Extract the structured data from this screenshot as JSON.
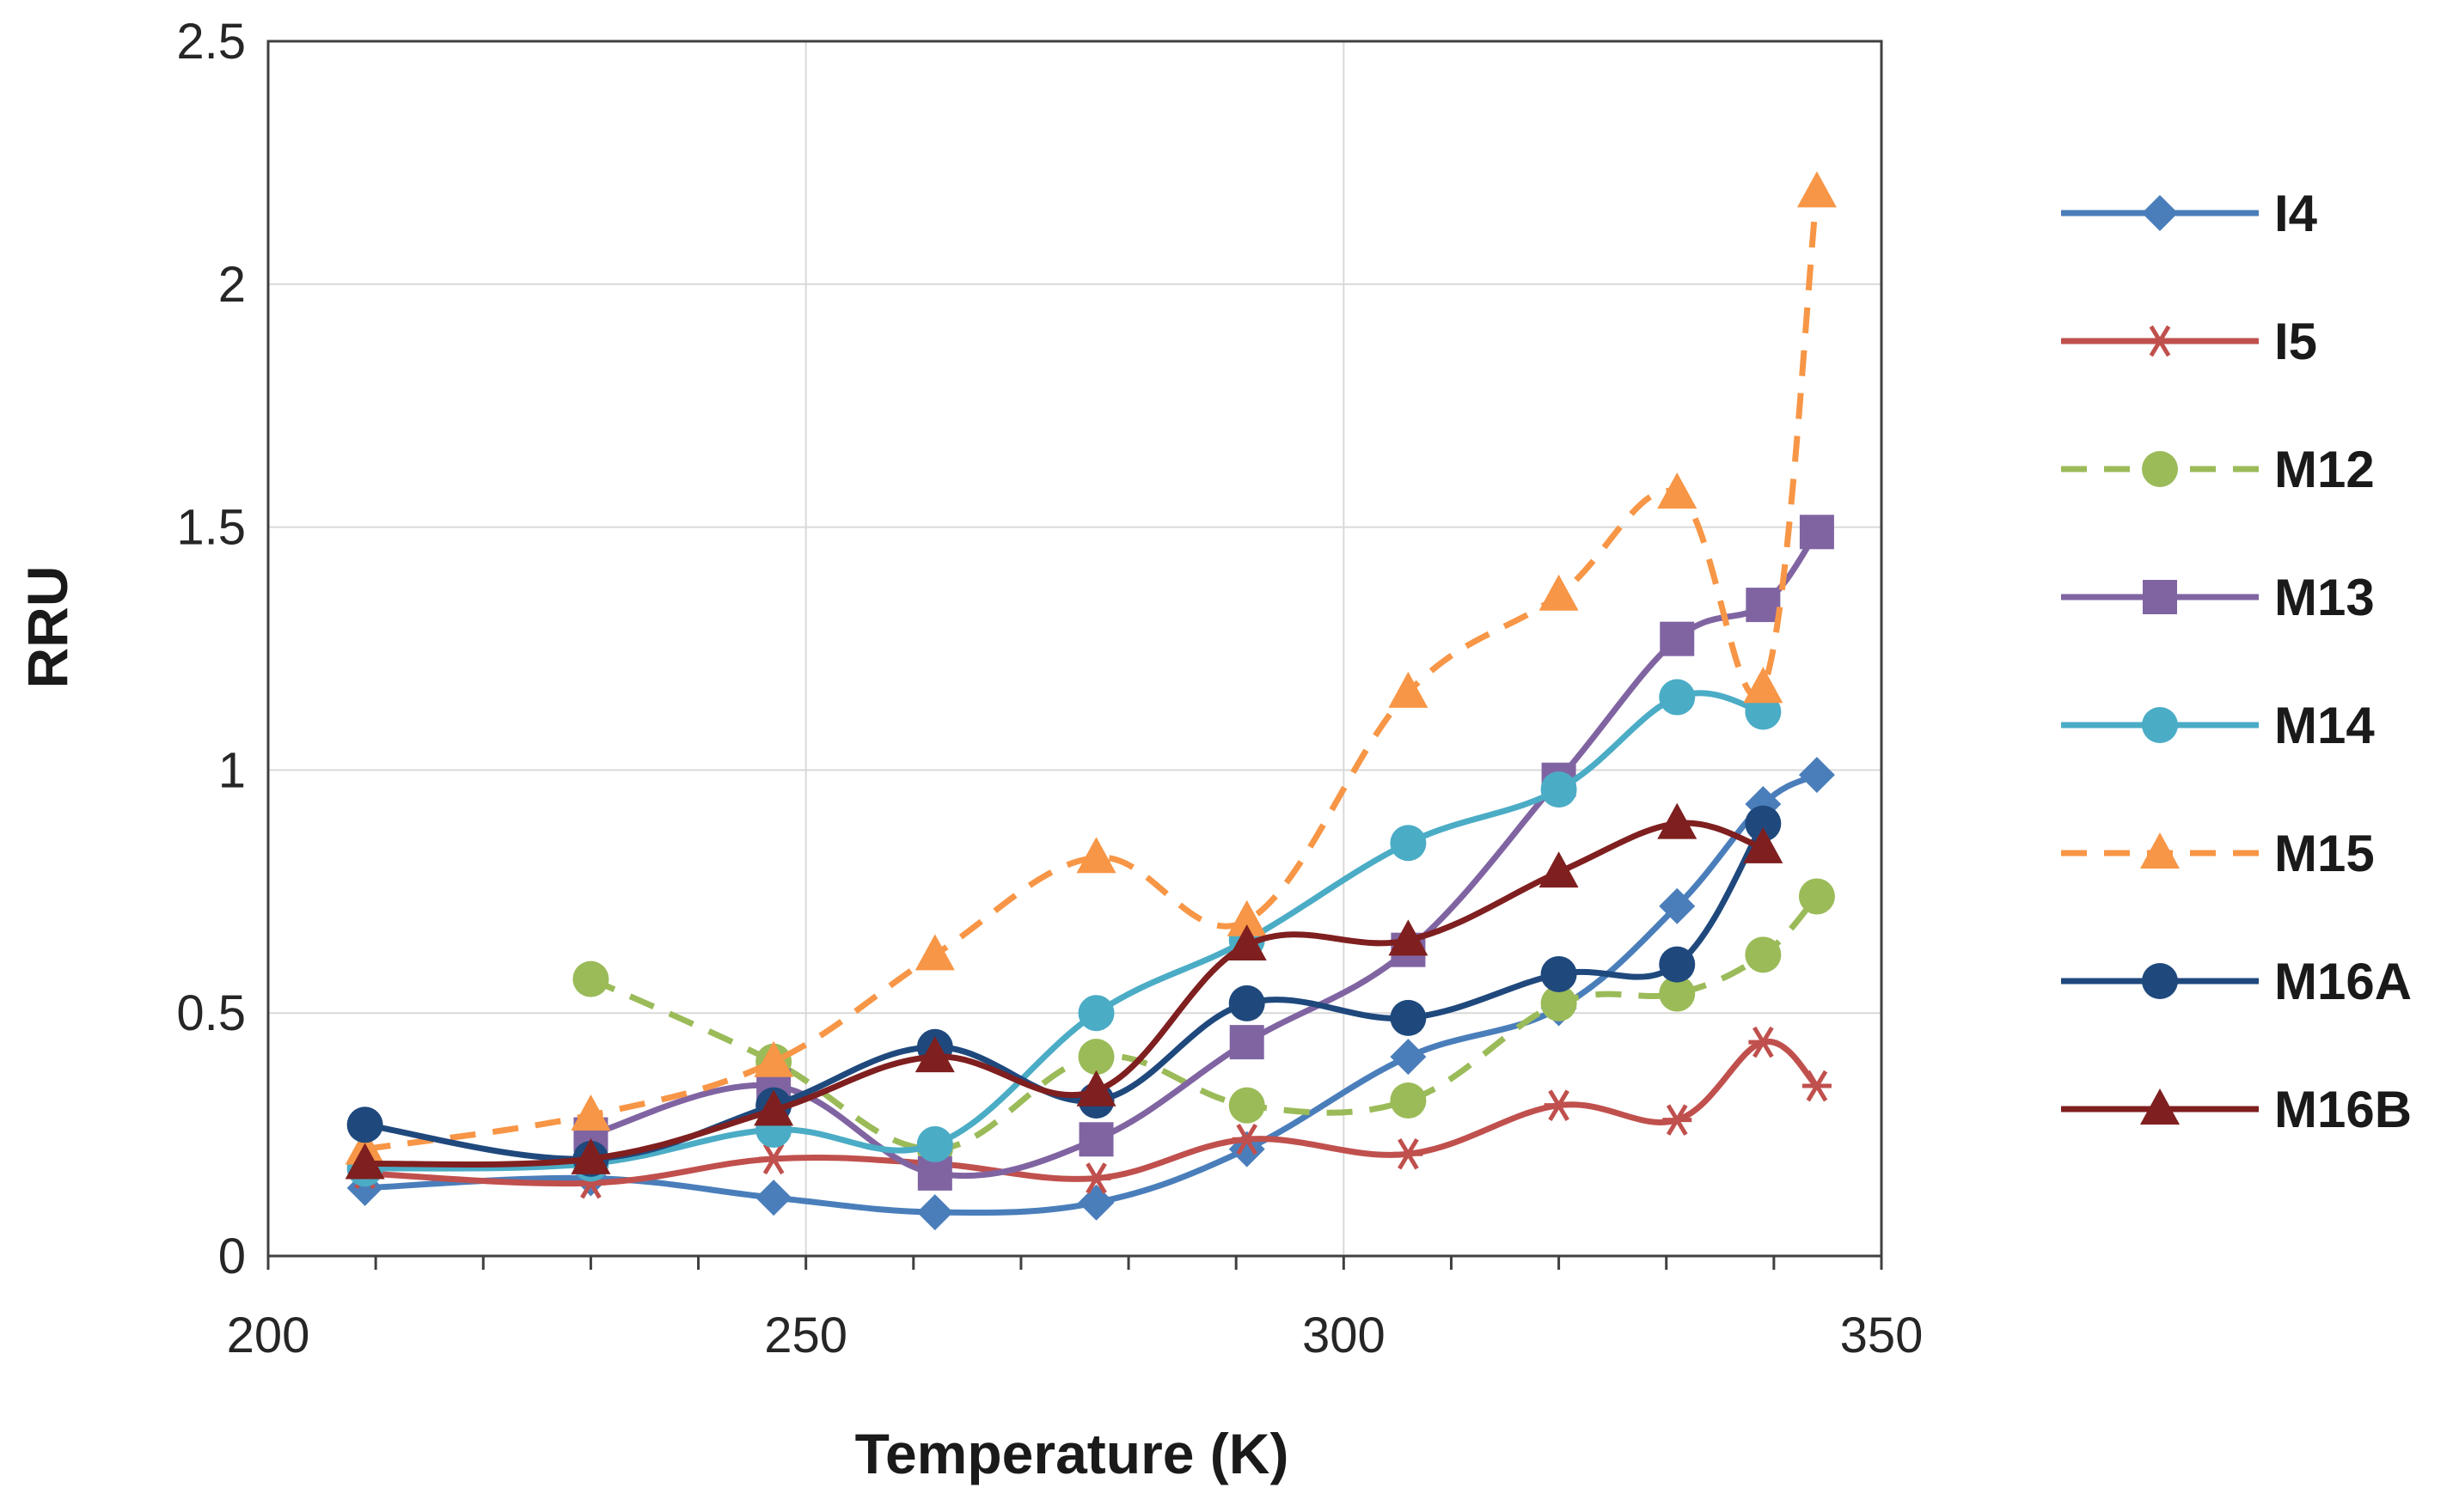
{
  "chart_data": {
    "type": "line",
    "title": "",
    "xlabel": "Temperature (K)",
    "ylabel": "RRU",
    "xlim": [
      200,
      350
    ],
    "ylim": [
      0,
      2.5
    ],
    "x_ticks": [
      200,
      250,
      300,
      350
    ],
    "x_tick_labels": [
      "200",
      "250",
      "300",
      "350"
    ],
    "y_ticks": [
      0,
      0.5,
      1,
      1.5,
      2,
      2.5
    ],
    "y_tick_labels": [
      "0",
      "0.5",
      "1",
      "1.5",
      "2",
      "2.5"
    ],
    "grid": true,
    "legend_position": "right",
    "series": [
      {
        "name": "I4",
        "color": "#4a7ebb",
        "marker": "diamond",
        "dashed": false,
        "x": [
          209,
          230,
          247,
          262,
          277,
          291,
          306,
          320,
          331,
          339,
          344
        ],
        "y": [
          0.14,
          0.16,
          0.12,
          0.09,
          0.11,
          0.22,
          0.41,
          0.51,
          0.72,
          0.93,
          0.99
        ]
      },
      {
        "name": "I5",
        "color": "#c0504d",
        "marker": "star",
        "dashed": false,
        "x": [
          209,
          230,
          247,
          262,
          277,
          291,
          306,
          320,
          331,
          339,
          344
        ],
        "y": [
          0.17,
          0.15,
          0.2,
          0.19,
          0.16,
          0.24,
          0.21,
          0.31,
          0.28,
          0.44,
          0.35
        ]
      },
      {
        "name": "M12",
        "color": "#9bbb59",
        "marker": "circle",
        "dashed": true,
        "x": [
          230,
          247,
          262,
          277,
          291,
          306,
          320,
          331,
          339,
          344
        ],
        "y": [
          0.57,
          0.4,
          0.22,
          0.41,
          0.31,
          0.32,
          0.52,
          0.54,
          0.62,
          0.74
        ]
      },
      {
        "name": "M13",
        "color": "#8064a2",
        "marker": "square",
        "dashed": false,
        "x": [
          230,
          247,
          262,
          277,
          291,
          306,
          320,
          331,
          339,
          344
        ],
        "y": [
          0.25,
          0.35,
          0.17,
          0.24,
          0.44,
          0.63,
          0.98,
          1.27,
          1.34,
          1.49
        ]
      },
      {
        "name": "M14",
        "color": "#4bacc6",
        "marker": "circle",
        "dashed": false,
        "x": [
          209,
          230,
          247,
          262,
          277,
          291,
          306,
          320,
          331,
          339
        ],
        "y": [
          0.18,
          0.19,
          0.26,
          0.23,
          0.5,
          0.65,
          0.85,
          0.96,
          1.15,
          1.12
        ]
      },
      {
        "name": "M15",
        "color": "#f79646",
        "marker": "triangle",
        "dashed": true,
        "x": [
          209,
          230,
          247,
          262,
          277,
          291,
          306,
          320,
          331,
          339,
          344
        ],
        "y": [
          0.22,
          0.29,
          0.4,
          0.62,
          0.82,
          0.69,
          1.16,
          1.36,
          1.57,
          1.17,
          2.19
        ]
      },
      {
        "name": "M16A",
        "color": "#1f497d",
        "marker": "circle",
        "dashed": false,
        "x": [
          209,
          230,
          247,
          262,
          277,
          291,
          306,
          320,
          331,
          339
        ],
        "y": [
          0.27,
          0.2,
          0.31,
          0.43,
          0.32,
          0.52,
          0.49,
          0.58,
          0.6,
          0.89
        ]
      },
      {
        "name": "M16B",
        "color": "#7f1f1f",
        "marker": "triangle",
        "dashed": false,
        "x": [
          209,
          230,
          247,
          262,
          277,
          291,
          306,
          320,
          331,
          339
        ],
        "y": [
          0.19,
          0.2,
          0.3,
          0.41,
          0.34,
          0.64,
          0.65,
          0.79,
          0.89,
          0.84
        ]
      }
    ]
  }
}
